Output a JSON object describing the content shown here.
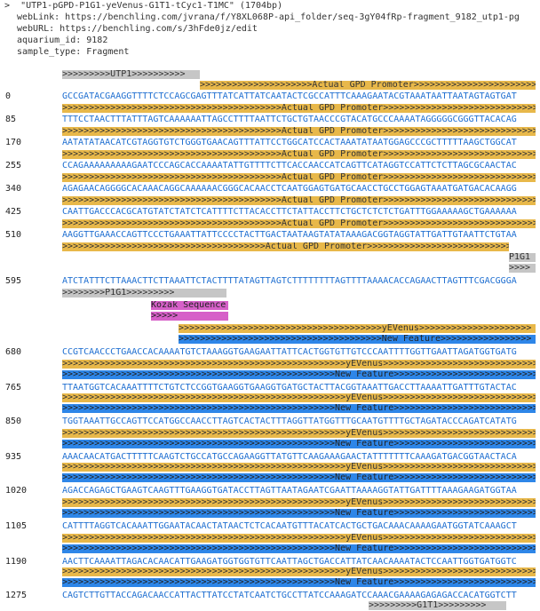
{
  "header": {
    "caret": ">",
    "title": "\"UTP1-pGPD-P1G1-yeVenus-G1T1-tCyc1-T1MC\" (1704bp)",
    "weblink": "webLink: https://benchling.com/jvrana/f/Y8XL068P-api_folder/seq-3gY04fRp-fragment_9182_utp1-pg",
    "weburl": "webURL: https://benchling.com/s/3hFde0jz/edit",
    "aquarium": "aquarium_id: 9182",
    "sample": "sample_type: Fragment"
  },
  "annotations": {
    "utp1": ">>>>>>>>>UTP1>>>>>>>>>>",
    "gpd_first": ">>>>>>>>>>>>>>>>>>>>>Actual GPD Promoter>>>>>>>>>>>>>>>>>>>>>>>>>>>>>>>>>",
    "gpd": ">>>>>>>>>>>>>>>>>>>>>>>>>>>>>>>>>>>>>>>>>Actual GPD Promoter>>>>>>>>>>>>>>>>>>>>>>>>>>>>>>>>>>>>",
    "gpd_last": ">>>>>>>>>>>>>>>>>>>>>>>>>>>>>>>>>>>>>>Actual GPD Promoter>>>>>>>>>>>>>>>>>>>>>>>>>>>>>>>>",
    "p1g1_label": "P1G1",
    "p1g1_arrows": ">>>>",
    "p1g1_cont": ">>>>>>>>P1G1>>>>>>>>>",
    "kozak_label": "Kozak Sequence",
    "kozak_arrows": ">>>>>",
    "yevenus_first": ">>>>>>>>>>>>>>>>>>>>>>>>>>>>>>>>>>>>>>yEVenus>>>>>>>>>>>>>>>>>>>>>",
    "newfeat_first": ">>>>>>>>>>>>>>>>>>>>>>>>>>>>>>>>>>>>>>New Feature>>>>>>>>>>>>>>>>>",
    "yevenus": ">>>>>>>>>>>>>>>>>>>>>>>>>>>>>>>>>>>>>>>>>>>>>>>>>>>>>yEVenus>>>>>>>>>>>>>>>>>>>>>>>>>>>>>>>>>>>>>>>>>>>>>>>>>",
    "newfeat": ">>>>>>>>>>>>>>>>>>>>>>>>>>>>>>>>>>>>>>>>>>>>>>>>>>>New Feature>>>>>>>>>>>>>>>>>>>>>>>>>>>>>>>>>>>>>>>>>>>>",
    "g1t1": ">>>>>>>>>G1T1>>>>>>>>>"
  },
  "rows": [
    {
      "pos": "0",
      "seq": "GCCGATACGAAGGTTTTCTCCAGCGAGTTTATCATTATCAATACTCGCCATTTCAAAGAATACGTAAATAATTAATAGTAGTGAT"
    },
    {
      "pos": "85",
      "seq": "TTTCCTAACTTTATTTAGTCAAAAAATTAGCCTTTTAATTCTGCTGTAACCCGTACATGCCCAAAATAGGGGGCGGGTTACACAG"
    },
    {
      "pos": "170",
      "seq": "AATATATAACATCGTAGGTGTCTGGGTGAACAGTTTATTCCTGGCATCCACTAAATATAATGGAGCCCGCTTTTTAAGCTGGCAT"
    },
    {
      "pos": "255",
      "seq": "CCAGAAAAAAAAAGAATCCCAGCACCAAAATATTGTTTTCTTCACCAACCATCAGTTCATAGGTCCATTCTCTTAGCGCAACTAC"
    },
    {
      "pos": "340",
      "seq": "AGAGAACAGGGGCACAAACAGGCAAAAAACGGGCACAACCTCAATGGAGTGATGCAACCTGCCTGGAGTAAATGATGACACAAGG"
    },
    {
      "pos": "425",
      "seq": "CAATTGACCCACGCATGTATCTATCTCATTTTCTTACACCTTCTATTACCTTCTGCTCTCTCTGATTTGGAAAAAGCTGAAAAAA"
    },
    {
      "pos": "510",
      "seq": "AAGGTTGAAACCAGTTCCCTGAAATTATTCCCCTACTTGACTAATAAGTATATAAAGACGGTAGGTATTGATTGTAATTCTGTAA"
    },
    {
      "pos": "595",
      "seq": "ATCTATTTCTTAAACTTCTTAAATTCTACTTTTATAGTTAGTCTTTTTTTTAGTTTTAAAACACCAGAACTTAGTTTCGACGGGA"
    },
    {
      "pos": "680",
      "seq": "CCGTCAACCCTGAACCACAAAATGTCTAAAGGTGAAGAATTATTCACTGGTGTTGTCCCAATTTTGGTTGAATTAGATGGTGATG"
    },
    {
      "pos": "765",
      "seq": "TTAATGGTCACAAATTTTCTGTCTCCGGTGAAGGTGAAGGTGATGCTACTTACGGTAAATTGACCTTAAAATTGATTTGTACTAC"
    },
    {
      "pos": "850",
      "seq": "TGGTAAATTGCCAGTTCCATGGCCAACCTTAGTCACTACTTTAGGTTATGGTTTGCAATGTTTTGCTAGATACCCAGATCATATG"
    },
    {
      "pos": "935",
      "seq": "AAACAACATGACTTTTTCAAGTCTGCCATGCCAGAAGGTTATGTTCAAGAAAGAACTATTTTTTTCAAAGATGACGGTAACTACA"
    },
    {
      "pos": "1020",
      "seq": "AGACCAGAGCTGAAGTCAAGTTTGAAGGTGATACCTTAGTTAATAGAATCGAATTAAAAGGTATTGATTTTAAAGAAGATGGTAA"
    },
    {
      "pos": "1105",
      "seq": "CATTTTAGGTCACAAATTGGAATACAACTATAACTCTCACAATGTTTACATCACTGCTGACAAACAAAAGAATGGTATCAAAGCT"
    },
    {
      "pos": "1190",
      "seq": "AACTTCAAAATTAGACACAACATTGAAGATGGTGGTGTTCAATTAGCTGACCATTATCAACAAAATACTCCAATTGGTGATGGTC"
    },
    {
      "pos": "1275",
      "seq": "CAGTCTTGTTACCAGACAACCATTACTTATCCTATCAATCTGCCTTATCCAAAGATCCAAACGAAAAGAGAGACCACATGGTCTT"
    }
  ]
}
